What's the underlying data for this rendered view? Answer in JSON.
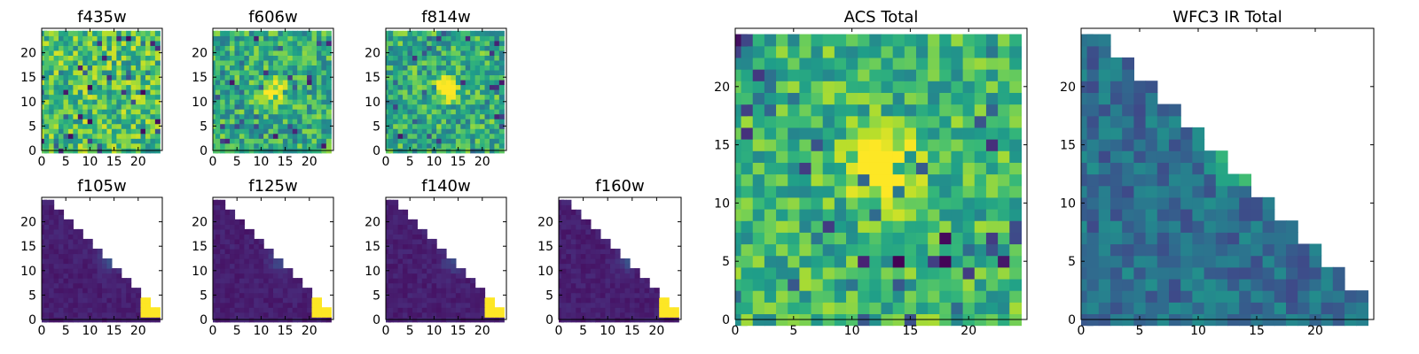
{
  "chart_data": [
    {
      "type": "heatmap",
      "title": "f435w",
      "pattern": "noise",
      "colormap": "viridis",
      "xlim": [
        0,
        25
      ],
      "ylim": [
        0,
        25
      ],
      "xticks": [
        0,
        5,
        10,
        15,
        20
      ],
      "yticks": [
        0,
        5,
        10,
        15,
        20
      ]
    },
    {
      "type": "heatmap",
      "title": "f606w",
      "pattern": "noise_blob",
      "colormap": "viridis",
      "xlim": [
        0,
        25
      ],
      "ylim": [
        0,
        25
      ],
      "xticks": [
        0,
        5,
        10,
        15,
        20
      ],
      "yticks": [
        0,
        5,
        10,
        15,
        20
      ]
    },
    {
      "type": "heatmap",
      "title": "f814w",
      "pattern": "noise_blob",
      "colormap": "viridis",
      "xlim": [
        0,
        25
      ],
      "ylim": [
        0,
        25
      ],
      "xticks": [
        0,
        5,
        10,
        15,
        20
      ],
      "yticks": [
        0,
        5,
        10,
        15,
        20
      ]
    },
    {
      "type": "heatmap",
      "title": "f105w",
      "pattern": "triangle",
      "colormap": "viridis",
      "xlim": [
        0,
        25
      ],
      "ylim": [
        0,
        25
      ],
      "xticks": [
        0,
        5,
        10,
        15,
        20
      ],
      "yticks": [
        0,
        5,
        10,
        15,
        20
      ]
    },
    {
      "type": "heatmap",
      "title": "f125w",
      "pattern": "triangle",
      "colormap": "viridis",
      "xlim": [
        0,
        25
      ],
      "ylim": [
        0,
        25
      ],
      "xticks": [
        0,
        5,
        10,
        15,
        20
      ],
      "yticks": [
        0,
        5,
        10,
        15,
        20
      ]
    },
    {
      "type": "heatmap",
      "title": "f140w",
      "pattern": "triangle",
      "colormap": "viridis",
      "xlim": [
        0,
        25
      ],
      "ylim": [
        0,
        25
      ],
      "xticks": [
        0,
        5,
        10,
        15,
        20
      ],
      "yticks": [
        0,
        5,
        10,
        15,
        20
      ]
    },
    {
      "type": "heatmap",
      "title": "f160w",
      "pattern": "triangle",
      "colormap": "viridis",
      "xlim": [
        0,
        25
      ],
      "ylim": [
        0,
        25
      ],
      "xticks": [
        0,
        5,
        10,
        15,
        20
      ],
      "yticks": [
        0,
        5,
        10,
        15,
        20
      ]
    },
    {
      "type": "heatmap",
      "title": "ACS Total",
      "pattern": "noise_blob_big",
      "colormap": "viridis",
      "xlim": [
        0,
        25
      ],
      "ylim": [
        0,
        25
      ],
      "xticks": [
        0,
        5,
        10,
        15,
        20
      ],
      "yticks": [
        0,
        5,
        10,
        15,
        20
      ]
    },
    {
      "type": "heatmap",
      "title": "WFC3 IR Total",
      "pattern": "triangle_big",
      "colormap": "viridis",
      "xlim": [
        0,
        25
      ],
      "ylim": [
        0,
        25
      ],
      "xticks": [
        0,
        5,
        10,
        15,
        20
      ],
      "yticks": [
        0,
        5,
        10,
        15,
        20
      ]
    }
  ]
}
